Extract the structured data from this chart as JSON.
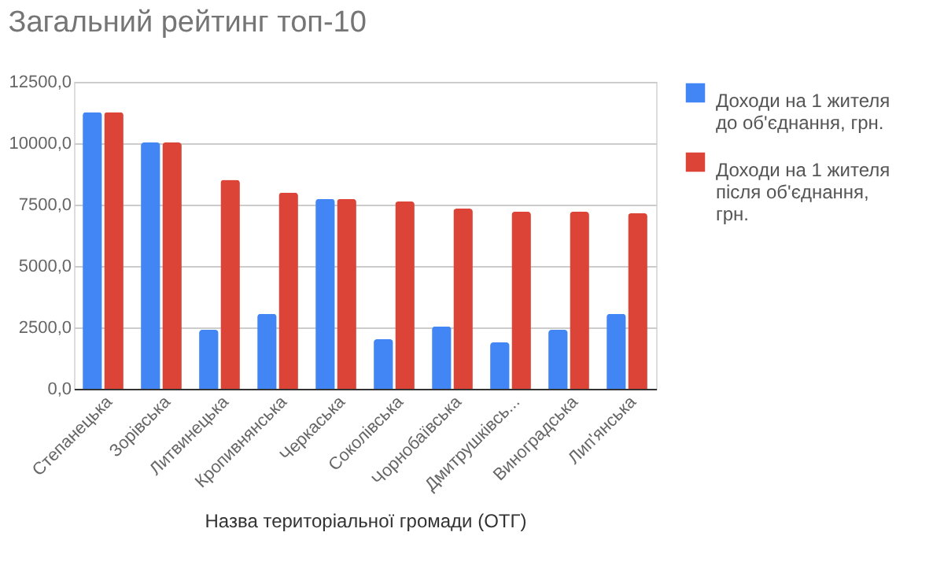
{
  "chart_data": {
    "type": "bar",
    "title": "Загальний рейтинг топ-10",
    "xlabel": "Назва  територіальної громади (ОТГ)",
    "categories": [
      "Степанецька",
      "Зорівська",
      "Литвинецька",
      "Кропивнянська",
      "Черкаська",
      "Соколівська",
      "Чорнобаївська",
      "Дмитрушківсь...",
      "Виноградська",
      "Лип'янська"
    ],
    "series": [
      {
        "name": "Доходи на 1 жителя до об'єднання, грн.",
        "color": "#4285f4",
        "values": [
          11270,
          10030,
          2400,
          3050,
          7730,
          2020,
          2540,
          1890,
          2400,
          3050
        ]
      },
      {
        "name": "Доходи на 1 жителя після об'єднання, грн.",
        "color": "#db4437",
        "values": [
          11270,
          10030,
          8510,
          7990,
          7730,
          7630,
          7340,
          7210,
          7210,
          7150
        ]
      }
    ],
    "ylim": [
      0,
      12500
    ],
    "yticks": [
      {
        "value": 0,
        "label": "0,0"
      },
      {
        "value": 2500,
        "label": "2500,0"
      },
      {
        "value": 5000,
        "label": "5000,0"
      },
      {
        "value": 7500,
        "label": "7500,0"
      },
      {
        "value": 10000,
        "label": "10000,0"
      },
      {
        "value": 12500,
        "label": "12500,0"
      }
    ],
    "grid": "y",
    "legend": "top right"
  }
}
